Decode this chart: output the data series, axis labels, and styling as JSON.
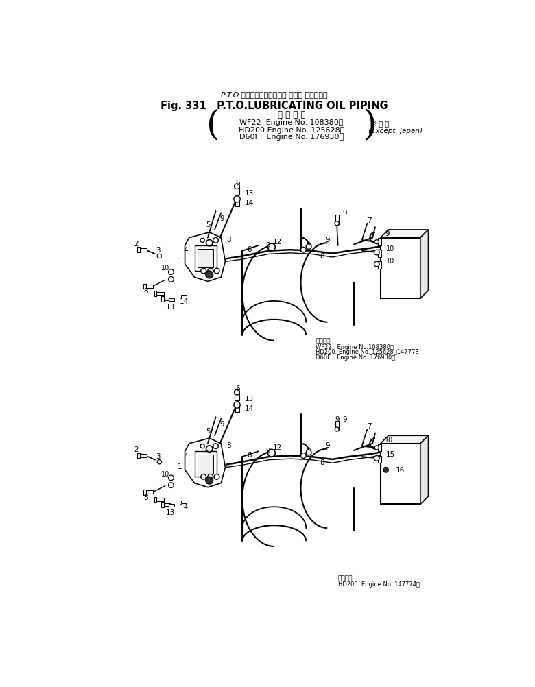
{
  "title_jp": "P.T.O.ルーブリケーティング オイル パイピング",
  "title_en": "Fig. 331   P.T.O.LUBRICATING OIL PIPING",
  "app_header": "適 用 号 機",
  "app_lines": [
    "WF22  Engine No. 108380～",
    "HD200 Engine No. 125628～",
    "D60F   Engine No. 176930～"
  ],
  "except_jp": "※ 外 貨",
  "except_en": "(Except  Japan)",
  "fig1_note_header": "適用号機",
  "fig1_note_lines": [
    "WF22.  Engine No.108380～",
    "HD200. Engine No. 125628～147773",
    "D60F.   Engine No. 176930～"
  ],
  "fig2_note_header": "適用号機",
  "fig2_note_line": "HD200. Engine No. 147774～",
  "bg": "#ffffff",
  "lc": "#000000"
}
